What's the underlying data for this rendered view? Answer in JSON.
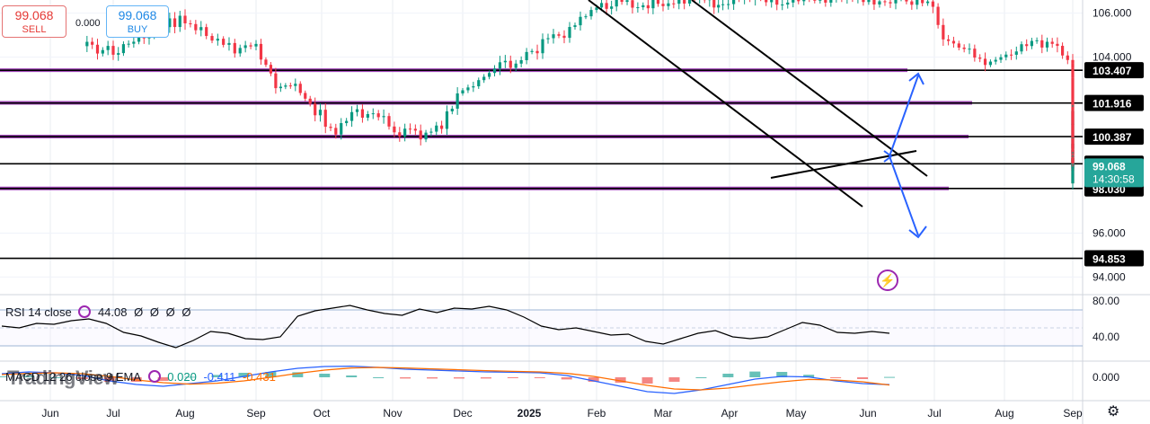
{
  "trade": {
    "sell_price": "99.068",
    "sell_label": "SELL",
    "spread": "0.000",
    "buy_price": "99.068",
    "buy_label": "BUY"
  },
  "chart_data": {
    "type": "candlestick",
    "x_ticks": [
      "Jun",
      "Jul",
      "Aug",
      "Sep",
      "Oct",
      "Nov",
      "Dec",
      "2025",
      "Feb",
      "Mar",
      "Apr",
      "May",
      "Jun",
      "Jul",
      "Aug",
      "Sep"
    ],
    "y_ticks": [
      "106.000",
      "104.000",
      "96.000",
      "94.000"
    ],
    "price_ylim": [
      93.2,
      106.6
    ],
    "horizontal_levels": [
      {
        "label": "103.407",
        "value": 103.407,
        "color": "#000000",
        "price_tag": true
      },
      {
        "label": "101.916",
        "value": 101.916,
        "color": "#000000",
        "price_tag": true
      },
      {
        "label": "100.387",
        "value": 100.387,
        "color": "#000000",
        "price_tag": true
      },
      {
        "label": "99.153",
        "value": 99.153,
        "color": "#000000",
        "price_tag": true
      },
      {
        "label": "98.030",
        "value": 98.03,
        "color": "#000000",
        "price_tag": true
      },
      {
        "label": "94.853",
        "value": 94.853,
        "color": "#000000",
        "price_tag": true
      }
    ],
    "purple_levels": [
      103.41,
      101.92,
      100.39,
      98.03
    ],
    "current_price": {
      "value": 99.068,
      "label": "99.068",
      "countdown": "14:30:58",
      "color": "#26a69a"
    },
    "candle_close_trend": [
      {
        "t": 0.5,
        "v": 104.5
      },
      {
        "t": 1.0,
        "v": 104.3
      },
      {
        "t": 1.5,
        "v": 105.2
      },
      {
        "t": 2.0,
        "v": 105.8
      },
      {
        "t": 2.3,
        "v": 104.9
      },
      {
        "t": 2.7,
        "v": 104.3
      },
      {
        "t": 3.0,
        "v": 104.5
      },
      {
        "t": 3.3,
        "v": 102.8
      },
      {
        "t": 3.6,
        "v": 102.6
      },
      {
        "t": 3.9,
        "v": 101.6
      },
      {
        "t": 4.2,
        "v": 100.6
      },
      {
        "t": 4.5,
        "v": 101.5
      },
      {
        "t": 4.8,
        "v": 101.2
      },
      {
        "t": 5.1,
        "v": 100.6
      },
      {
        "t": 5.4,
        "v": 100.5
      },
      {
        "t": 5.7,
        "v": 100.9
      },
      {
        "t": 6.0,
        "v": 102.5
      },
      {
        "t": 6.4,
        "v": 103.3
      },
      {
        "t": 6.8,
        "v": 103.8
      },
      {
        "t": 7.2,
        "v": 104.6
      },
      {
        "t": 7.6,
        "v": 105.2
      },
      {
        "t": 8.0,
        "v": 106.3
      },
      {
        "t": 8.3,
        "v": 106.6
      },
      {
        "t": 8.7,
        "v": 106.4
      },
      {
        "t": 9.0,
        "v": 106.5
      },
      {
        "t": 9.4,
        "v": 106.7
      },
      {
        "t": 9.7,
        "v": 106.5
      },
      {
        "t": 9.9,
        "v": 106.6
      },
      {
        "t": 12.5,
        "v": 106.6
      },
      {
        "t": 12.9,
        "v": 106.5
      },
      {
        "t": 13.2,
        "v": 104.6
      },
      {
        "t": 13.5,
        "v": 104.2
      },
      {
        "t": 13.8,
        "v": 103.8
      },
      {
        "t": 14.1,
        "v": 104.3
      },
      {
        "t": 14.4,
        "v": 104.8
      },
      {
        "t": 14.7,
        "v": 104.5
      },
      {
        "t": 15.0,
        "v": 103.5
      },
      {
        "t": 15.3,
        "v": 102.9
      },
      {
        "t": 15.6,
        "v": 100.5
      },
      {
        "t": 15.9,
        "v": 99.3
      },
      {
        "t": 16.2,
        "v": 98.3
      },
      {
        "t": 16.5,
        "v": 98.9
      },
      {
        "t": 16.8,
        "v": 99.5
      },
      {
        "t": 17.1,
        "v": 99.7
      },
      {
        "t": 17.4,
        "v": 99.6
      },
      {
        "t": 17.7,
        "v": 101.3
      },
      {
        "t": 18.0,
        "v": 100.6
      },
      {
        "t": 18.3,
        "v": 99.8
      },
      {
        "t": 18.6,
        "v": 99.4
      },
      {
        "t": 18.9,
        "v": 99.0
      },
      {
        "t": 19.2,
        "v": 99.1
      }
    ],
    "rsi": {
      "label": "RSI 14 close",
      "value": "44.08",
      "extras": [
        "Ø",
        "Ø",
        "Ø",
        "Ø"
      ],
      "y_ticks": [
        "80.00",
        "40.00"
      ],
      "ylim": [
        15,
        85
      ],
      "bands": [
        70,
        30
      ],
      "series": [
        52,
        50,
        55,
        54,
        58,
        60,
        55,
        45,
        41,
        34,
        28,
        36,
        46,
        44,
        38,
        37,
        40,
        63,
        69,
        72,
        75,
        70,
        66,
        64,
        71,
        67,
        72,
        71,
        74,
        70,
        62,
        52,
        48,
        50,
        46,
        42,
        43,
        35,
        32,
        38,
        44,
        47,
        40,
        38,
        40,
        48,
        56,
        53,
        45,
        44,
        46,
        44
      ]
    },
    "macd": {
      "label": "MACD 12 26 close 9 EMA",
      "values": [
        "0.020",
        "-0.411",
        "-0.431"
      ],
      "value_colors": [
        "#089981",
        "#2962ff",
        "#ff6d00"
      ],
      "y_ticks": [
        "0.000"
      ],
      "ylim": [
        -1.2,
        0.8
      ],
      "macd_series": [
        0.2,
        0.3,
        0.25,
        0.1,
        -0.2,
        -0.4,
        -0.5,
        -0.35,
        -0.2,
        0.05,
        0.3,
        0.5,
        0.6,
        0.62,
        0.55,
        0.45,
        0.4,
        0.35,
        0.3,
        0.28,
        0.25,
        0.1,
        -0.2,
        -0.5,
        -0.8,
        -0.9,
        -0.7,
        -0.4,
        -0.1,
        0.05,
        0.02,
        -0.2,
        -0.35,
        -0.411
      ],
      "signal_series": [
        0.15,
        0.22,
        0.25,
        0.2,
        0.05,
        -0.15,
        -0.3,
        -0.38,
        -0.33,
        -0.2,
        0.0,
        0.22,
        0.4,
        0.52,
        0.55,
        0.52,
        0.47,
        0.42,
        0.37,
        0.33,
        0.3,
        0.22,
        0.05,
        -0.2,
        -0.45,
        -0.65,
        -0.7,
        -0.6,
        -0.42,
        -0.25,
        -0.12,
        -0.15,
        -0.25,
        -0.431
      ]
    }
  },
  "watermark": "TradingView",
  "alert_icon": "lightning-icon",
  "settings_icon": "gear-icon"
}
